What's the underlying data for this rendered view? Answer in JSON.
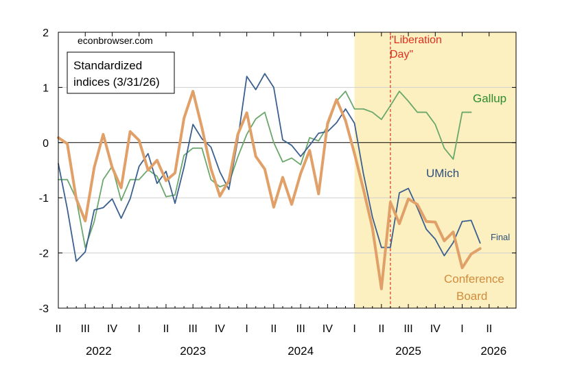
{
  "chart_data": {
    "type": "line",
    "source_text": "econbrowser.com",
    "title_box": [
      "Standardized",
      "indices (3/31/26)"
    ],
    "ylim": [
      -3,
      2
    ],
    "y_ticks": [
      2,
      1,
      0,
      -1,
      -2,
      -3
    ],
    "x_start_month": "2022-04",
    "x_end_month": "2026-06",
    "x_range": [
      0,
      51
    ],
    "quarter_ticks": [
      {
        "label": "II",
        "x": 0
      },
      {
        "label": "III",
        "x": 3
      },
      {
        "label": "IV",
        "x": 6
      },
      {
        "label": "I",
        "x": 9
      },
      {
        "label": "II",
        "x": 12
      },
      {
        "label": "III",
        "x": 15
      },
      {
        "label": "IV",
        "x": 18
      },
      {
        "label": "I",
        "x": 21
      },
      {
        "label": "II",
        "x": 24
      },
      {
        "label": "III",
        "x": 27
      },
      {
        "label": "IV",
        "x": 30
      },
      {
        "label": "I",
        "x": 33
      },
      {
        "label": "II",
        "x": 36
      },
      {
        "label": "III",
        "x": 39
      },
      {
        "label": "IV",
        "x": 42
      },
      {
        "label": "I",
        "x": 45
      },
      {
        "label": "II",
        "x": 48
      }
    ],
    "years": [
      {
        "label": "2022",
        "x": 4.5
      },
      {
        "label": "2023",
        "x": 15
      },
      {
        "label": "2024",
        "x": 27
      },
      {
        "label": "2025",
        "x": 39
      },
      {
        "label": "2026",
        "x": 48.5
      }
    ],
    "shaded_region": {
      "x_start": 33.0,
      "x_end": 51,
      "color": "#fcefc0"
    },
    "event_line": {
      "x": 37.0,
      "label": [
        "\"Liberation",
        "Day\""
      ],
      "color": "#e0301e"
    },
    "series": [
      {
        "name": "UMich",
        "color": "#3a5f8f",
        "width": 1.8,
        "values": [
          -0.38,
          -1.2,
          -2.15,
          -1.98,
          -1.22,
          -1.18,
          -1.02,
          -1.37,
          -1.02,
          -0.43,
          -0.2,
          -0.74,
          -0.52,
          -1.1,
          -0.45,
          0.33,
          0.07,
          -0.08,
          -0.53,
          -0.85,
          0.05,
          1.2,
          0.96,
          1.25,
          1.0,
          0.05,
          -0.05,
          -0.25,
          -0.05,
          0.17,
          0.2,
          0.36,
          0.61,
          0.35,
          -0.57,
          -1.35,
          -1.9,
          -1.9,
          -0.91,
          -0.83,
          -1.18,
          -1.57,
          -1.75,
          -2.05,
          -1.81,
          -1.43,
          -1.41,
          -1.82
        ],
        "label_text": "UMich",
        "extra_label": "Final"
      },
      {
        "name": "Gallup",
        "color": "#6aa76a",
        "width": 1.8,
        "values": [
          -0.67,
          -0.67,
          -1.02,
          -1.9,
          -1.43,
          -0.67,
          -0.43,
          -1.05,
          -0.67,
          -0.67,
          -0.49,
          -0.61,
          -0.98,
          -0.95,
          -0.23,
          -0.1,
          -0.1,
          -0.67,
          -0.8,
          -0.74,
          -0.26,
          0.15,
          0.43,
          0.55,
          0.0,
          -0.35,
          -0.28,
          -0.4,
          0.09,
          0.03,
          0.3,
          0.75,
          0.93,
          0.61,
          0.61,
          0.55,
          0.42,
          0.67,
          0.93,
          0.75,
          0.55,
          0.55,
          0.33,
          -0.1,
          -0.3,
          0.55,
          0.55
        ],
        "label_text": "Gallup"
      },
      {
        "name": "Conference Board",
        "color": "#e0a068",
        "width": 4,
        "values": [
          0.09,
          -0.02,
          -1.02,
          -1.42,
          -0.45,
          0.15,
          -0.45,
          -0.82,
          0.2,
          0.04,
          -0.5,
          -0.32,
          -0.69,
          -0.55,
          0.44,
          0.93,
          0.27,
          -0.47,
          -0.97,
          -0.69,
          0.15,
          0.54,
          -0.25,
          -0.48,
          -1.17,
          -0.63,
          -1.12,
          -0.56,
          -0.14,
          -0.93,
          0.35,
          0.78,
          0.4,
          -0.2,
          -0.85,
          -1.55,
          -2.65,
          -1.08,
          -1.47,
          -1.02,
          -1.12,
          -1.43,
          -1.44,
          -1.78,
          -1.62,
          -2.27,
          -2.02,
          -1.92
        ],
        "label_text": [
          "Conference",
          "Board"
        ]
      }
    ]
  }
}
